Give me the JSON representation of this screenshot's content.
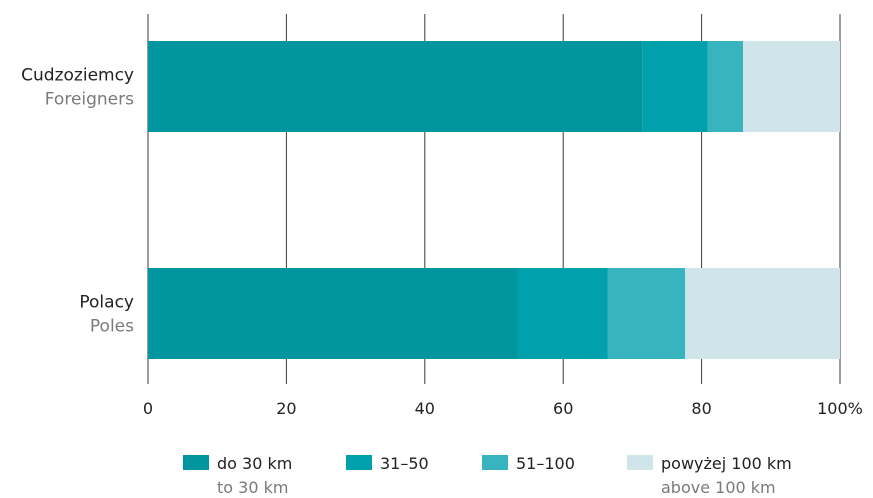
{
  "chart_data": {
    "type": "bar",
    "orientation": "horizontal",
    "stacked": true,
    "categories": [
      {
        "label": "Cudzoziemcy",
        "sublabel": "Foreigners"
      },
      {
        "label": "Polacy",
        "sublabel": "Poles"
      }
    ],
    "series": [
      {
        "name": "do 30 km",
        "subname": "to 30 km",
        "color": "#00959f",
        "values": [
          71.5,
          53.4
        ]
      },
      {
        "name": "31–50",
        "subname": "",
        "color": "#00a1ac",
        "values": [
          9.4,
          13.0
        ]
      },
      {
        "name": "51–100",
        "subname": "",
        "color": "#38b4bf",
        "values": [
          5.1,
          11.2
        ]
      },
      {
        "name": "powyżej 100 km",
        "subname": "above 100 km",
        "color": "#cfe5e9",
        "values": [
          14.0,
          22.4
        ]
      }
    ],
    "xlim": [
      0,
      100
    ],
    "xticks": [
      "0",
      "20",
      "40",
      "60",
      "80",
      "100%"
    ],
    "xtick_values": [
      0,
      20,
      40,
      60,
      80,
      100
    ],
    "grid": true,
    "legend_position": "bottom"
  }
}
